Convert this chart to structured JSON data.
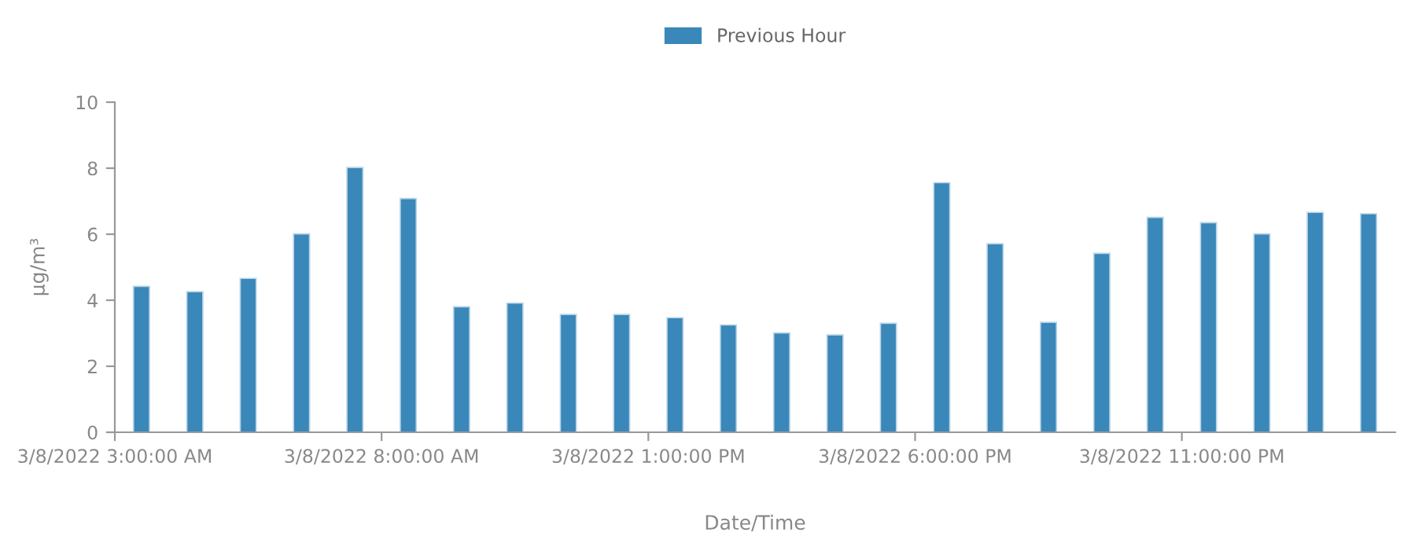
{
  "chart_data": {
    "type": "bar",
    "xlabel": "Date/Time",
    "ylabel": "µg/m³",
    "x": [
      "2022-03-08T03:30",
      "2022-03-08T04:30",
      "2022-03-08T05:30",
      "2022-03-08T06:30",
      "2022-03-08T07:30",
      "2022-03-08T08:30",
      "2022-03-08T09:30",
      "2022-03-08T10:30",
      "2022-03-08T11:30",
      "2022-03-08T12:30",
      "2022-03-08T13:30",
      "2022-03-08T14:30",
      "2022-03-08T15:30",
      "2022-03-08T16:30",
      "2022-03-08T17:30",
      "2022-03-08T18:30",
      "2022-03-08T19:30",
      "2022-03-08T20:30",
      "2022-03-08T21:30",
      "2022-03-08T22:30",
      "2022-03-08T23:30",
      "2022-03-09T00:30",
      "2022-03-09T01:30",
      "2022-03-09T02:30"
    ],
    "series": [
      {
        "name": "Previous Hour",
        "color": "#3a87b9",
        "values": [
          4.42,
          4.26,
          4.66,
          6.01,
          8.02,
          7.08,
          3.8,
          3.91,
          3.57,
          3.57,
          3.47,
          3.25,
          3.01,
          2.95,
          3.3,
          7.56,
          5.71,
          3.33,
          5.42,
          6.51,
          6.35,
          6.01,
          6.66,
          6.62
        ]
      }
    ],
    "xlim": [
      "2022-03-08T03:00",
      "2022-03-09T03:00"
    ],
    "xticks": [
      {
        "value": "2022-03-08T03:00",
        "label": "3/8/2022 3:00:00 AM"
      },
      {
        "value": "2022-03-08T08:00",
        "label": "3/8/2022 8:00:00 AM"
      },
      {
        "value": "2022-03-08T13:00",
        "label": "3/8/2022 1:00:00 PM"
      },
      {
        "value": "2022-03-08T18:00",
        "label": "3/8/2022 6:00:00 PM"
      },
      {
        "value": "2022-03-08T23:00",
        "label": "3/8/2022 11:00:00 PM"
      }
    ],
    "ylim": [
      0,
      10
    ],
    "yticks": [
      0,
      2,
      4,
      6,
      8,
      10
    ],
    "grid": false,
    "legend": "top"
  }
}
